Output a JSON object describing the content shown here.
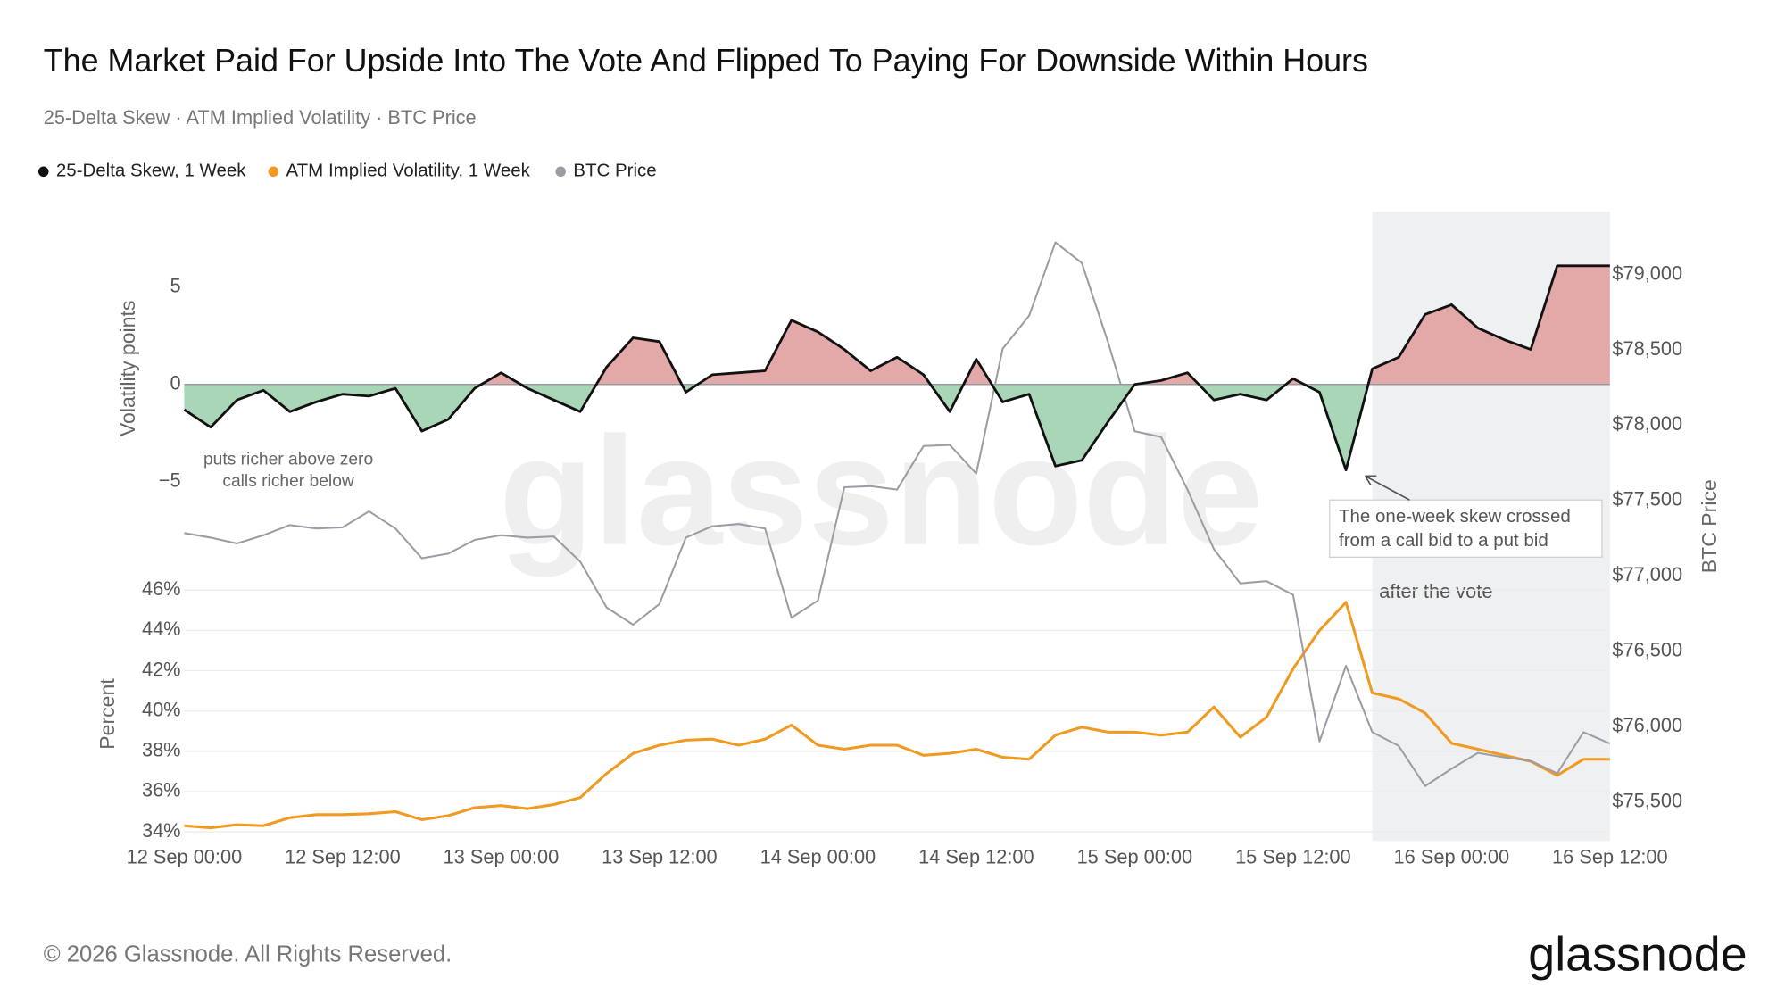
{
  "title": "The Market Paid For Upside Into The Vote And Flipped To Paying For Downside Within Hours",
  "subtitle": "25-Delta Skew · ATM Implied Volatility · BTC Price",
  "footer": "© 2026 Glassnode. All Rights Reserved.",
  "logo": "glassnode",
  "watermark": "glassnode",
  "chart_data": [
    {
      "type": "area",
      "ylabel": "Volatility points",
      "x": [
        "12 Sep 00:00",
        "12 Sep 02:00",
        "12 Sep 04:00",
        "12 Sep 06:00",
        "12 Sep 08:00",
        "12 Sep 10:00",
        "12 Sep 12:00",
        "12 Sep 14:00",
        "12 Sep 16:00",
        "12 Sep 18:00",
        "12 Sep 20:00",
        "12 Sep 22:00",
        "13 Sep 00:00",
        "13 Sep 02:00",
        "13 Sep 04:00",
        "13 Sep 06:00",
        "13 Sep 08:00",
        "13 Sep 10:00",
        "13 Sep 12:00",
        "13 Sep 14:00",
        "13 Sep 16:00",
        "13 Sep 18:00",
        "13 Sep 20:00",
        "13 Sep 22:00",
        "14 Sep 00:00",
        "14 Sep 02:00",
        "14 Sep 04:00",
        "14 Sep 06:00",
        "14 Sep 08:00",
        "14 Sep 10:00",
        "14 Sep 12:00",
        "14 Sep 14:00",
        "14 Sep 16:00",
        "14 Sep 18:00",
        "14 Sep 20:00",
        "14 Sep 22:00",
        "15 Sep 00:00",
        "15 Sep 02:00",
        "15 Sep 04:00",
        "15 Sep 06:00",
        "15 Sep 08:00",
        "15 Sep 10:00",
        "15 Sep 12:00",
        "15 Sep 14:00",
        "15 Sep 16:00",
        "15 Sep 18:00",
        "15 Sep 20:00",
        "15 Sep 22:00",
        "16 Sep 00:00",
        "16 Sep 02:00",
        "16 Sep 04:00",
        "16 Sep 06:00",
        "16 Sep 08:00",
        "16 Sep 10:00",
        "16 Sep 12:00"
      ],
      "series": [
        {
          "name": "25-Delta Skew, 1 Week",
          "color": "#111111",
          "pos_color": "#e3a8a8",
          "neg_color": "#a9d6b6",
          "values": [
            -1.3,
            -2.2,
            -0.8,
            -0.3,
            -1.4,
            -0.9,
            -0.5,
            -0.6,
            -0.2,
            -2.4,
            -1.8,
            -0.2,
            0.6,
            -0.2,
            -0.8,
            -1.4,
            0.9,
            2.4,
            2.2,
            -0.4,
            0.5,
            0.6,
            0.7,
            3.3,
            2.7,
            1.8,
            0.7,
            1.4,
            0.5,
            -1.4,
            1.3,
            -0.9,
            -0.5,
            -4.2,
            -3.9,
            -1.9,
            0,
            0.2,
            0.6,
            -0.8,
            -0.5,
            -0.8,
            0.3,
            -0.4,
            -4.4,
            0.8,
            1.4,
            3.6,
            4.1,
            2.9,
            2.3,
            1.8,
            6.1,
            6.1,
            6.1
          ]
        }
      ],
      "ylim": [
        -8,
        8
      ],
      "yticks": [
        {
          "value": 5,
          "label": "5"
        },
        {
          "value": 0,
          "label": "0"
        },
        {
          "value": -5,
          "label": "−5"
        }
      ],
      "grid": false,
      "annotations": [
        {
          "lines": [
            "puts richer above zero",
            "calls richer below"
          ]
        },
        {
          "lines": [
            "The one-week skew crossed",
            "from a call bid to a put bid"
          ]
        }
      ]
    },
    {
      "type": "line",
      "ylabel": "Percent",
      "y2label": "BTC Price",
      "x": [
        "12 Sep 00:00",
        "12 Sep 02:00",
        "12 Sep 04:00",
        "12 Sep 06:00",
        "12 Sep 08:00",
        "12 Sep 10:00",
        "12 Sep 12:00",
        "12 Sep 14:00",
        "12 Sep 16:00",
        "12 Sep 18:00",
        "12 Sep 20:00",
        "12 Sep 22:00",
        "13 Sep 00:00",
        "13 Sep 02:00",
        "13 Sep 04:00",
        "13 Sep 06:00",
        "13 Sep 08:00",
        "13 Sep 10:00",
        "13 Sep 12:00",
        "13 Sep 14:00",
        "13 Sep 16:00",
        "13 Sep 18:00",
        "13 Sep 20:00",
        "13 Sep 22:00",
        "14 Sep 00:00",
        "14 Sep 02:00",
        "14 Sep 04:00",
        "14 Sep 06:00",
        "14 Sep 08:00",
        "14 Sep 10:00",
        "14 Sep 12:00",
        "14 Sep 14:00",
        "14 Sep 16:00",
        "14 Sep 18:00",
        "14 Sep 20:00",
        "14 Sep 22:00",
        "15 Sep 00:00",
        "15 Sep 02:00",
        "15 Sep 04:00",
        "15 Sep 06:00",
        "15 Sep 08:00",
        "15 Sep 10:00",
        "15 Sep 12:00",
        "15 Sep 14:00",
        "15 Sep 16:00",
        "15 Sep 18:00",
        "15 Sep 20:00",
        "15 Sep 22:00",
        "16 Sep 00:00",
        "16 Sep 02:00",
        "16 Sep 04:00",
        "16 Sep 06:00",
        "16 Sep 08:00",
        "16 Sep 10:00",
        "16 Sep 12:00"
      ],
      "xticks": [
        "12 Sep 00:00",
        "12 Sep 12:00",
        "13 Sep 00:00",
        "13 Sep 12:00",
        "14 Sep 00:00",
        "14 Sep 12:00",
        "15 Sep 00:00",
        "15 Sep 12:00",
        "16 Sep 00:00",
        "16 Sep 12:00"
      ],
      "series": [
        {
          "name": "ATM Implied Volatility, 1 Week",
          "color": "#f09a22",
          "axis": "y",
          "values": [
            34.3,
            34.2,
            34.35,
            34.3,
            34.7,
            34.85,
            34.85,
            34.9,
            35.0,
            34.6,
            34.8,
            35.2,
            35.3,
            35.15,
            35.35,
            35.7,
            36.9,
            37.9,
            38.3,
            38.55,
            38.6,
            38.3,
            38.6,
            39.3,
            38.3,
            38.1,
            38.3,
            38.3,
            37.8,
            37.9,
            38.1,
            37.7,
            37.6,
            38.8,
            39.2,
            38.95,
            38.95,
            38.8,
            38.95,
            40.2,
            38.7,
            39.7,
            42.1,
            44.0,
            45.4,
            40.9,
            40.6,
            39.9,
            38.4,
            38.1,
            37.8,
            37.5,
            36.8,
            37.6,
            37.6
          ]
        },
        {
          "name": "BTC Price",
          "color": "#9a9ea4",
          "axis": "y2",
          "values": [
            77285,
            77254,
            77216,
            77270,
            77338,
            77315,
            77323,
            77429,
            77315,
            77118,
            77148,
            77239,
            77270,
            77254,
            77262,
            77095,
            76791,
            76677,
            76814,
            77254,
            77330,
            77345,
            77315,
            76723,
            76837,
            77588,
            77596,
            77573,
            77862,
            77869,
            77679,
            78507,
            78727,
            79213,
            79076,
            78545,
            77960,
            77922,
            77573,
            77178,
            76951,
            76966,
            76875,
            75903,
            76404,
            75964,
            75873,
            75607,
            75721,
            75827,
            75797,
            75774,
            75691,
            75964,
            75888
          ]
        }
      ],
      "ylim": [
        34,
        46.5
      ],
      "yticks": [
        {
          "value": 34,
          "label": "34%"
        },
        {
          "value": 36,
          "label": "36%"
        },
        {
          "value": 38,
          "label": "38%"
        },
        {
          "value": 40,
          "label": "40%"
        },
        {
          "value": 42,
          "label": "42%"
        },
        {
          "value": 44,
          "label": "44%"
        },
        {
          "value": 46,
          "label": "46%"
        }
      ],
      "y2lim": [
        75250,
        79500
      ],
      "y2ticks": [
        {
          "value": 75500,
          "label": "$75,500"
        },
        {
          "value": 76000,
          "label": "$76,000"
        },
        {
          "value": 76500,
          "label": "$76,500"
        },
        {
          "value": 77000,
          "label": "$77,000"
        },
        {
          "value": 77500,
          "label": "$77,500"
        },
        {
          "value": 78000,
          "label": "$78,000"
        },
        {
          "value": 78500,
          "label": "$78,500"
        },
        {
          "value": 79000,
          "label": "$79,000"
        }
      ],
      "grid": true,
      "highlight": {
        "start": "15 Sep 18:00",
        "label": "after the vote"
      }
    }
  ]
}
